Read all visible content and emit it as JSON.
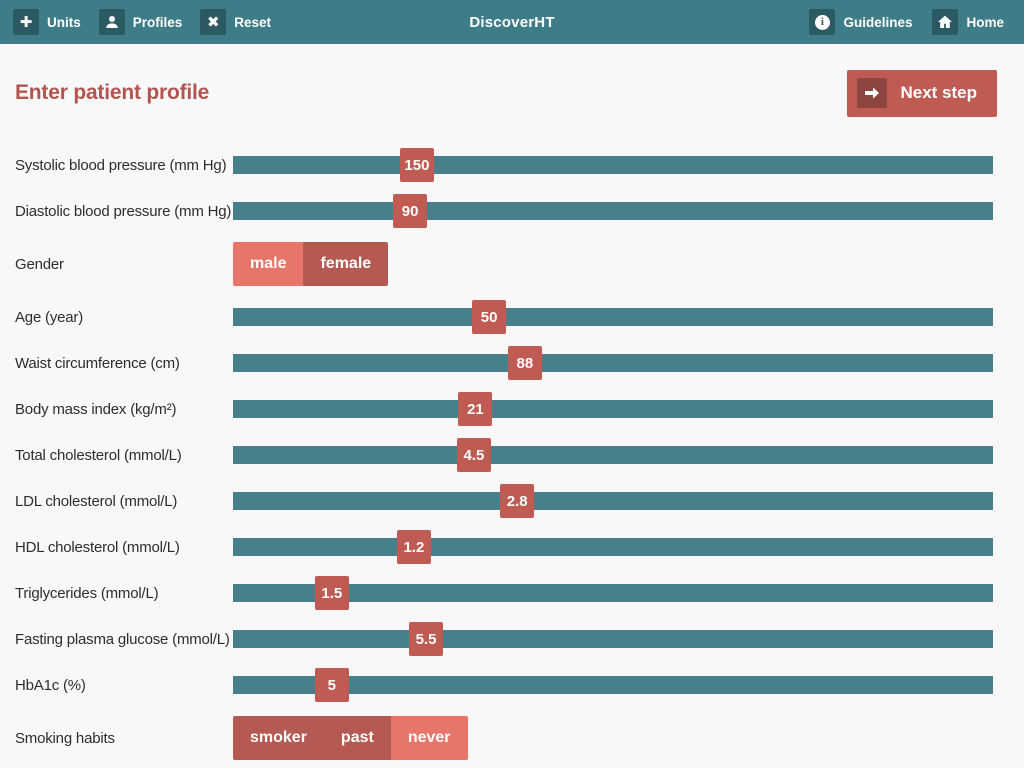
{
  "colors": {
    "teal_bar": "#3e7d87",
    "teal_dark": "#2b5a62",
    "teal_track": "#47808a",
    "red": "#c05b54",
    "red_dark": "#8e4540",
    "red_heading": "#b25551",
    "salmon": "#e8756a",
    "toggle_dark": "#b55a52",
    "bg": "#f8f8f8",
    "label": "#2d2d2d"
  },
  "navbar": {
    "title": "DiscoverHT",
    "left_items": [
      {
        "label": "Units",
        "icon": "plus-icon"
      },
      {
        "label": "Profiles",
        "icon": "person-icon"
      },
      {
        "label": "Reset",
        "icon": "x-icon"
      }
    ],
    "right_items": [
      {
        "label": "Guidelines",
        "icon": "info-icon"
      },
      {
        "label": "Home",
        "icon": "home-icon"
      }
    ]
  },
  "header": {
    "title": "Enter patient profile",
    "next_button": {
      "label": "Next step",
      "icon": "arrow-right-icon"
    }
  },
  "form": {
    "rows": [
      {
        "type": "slider",
        "label": "Systolic blood pressure (mm Hg)",
        "value": "150",
        "percent": 24.2
      },
      {
        "type": "slider",
        "label": "Diastolic blood pressure (mm Hg)",
        "value": "90",
        "percent": 23.3
      },
      {
        "type": "toggle",
        "label": "Gender",
        "options": [
          {
            "label": "male",
            "selected": true
          },
          {
            "label": "female",
            "selected": false
          }
        ]
      },
      {
        "type": "slider",
        "label": "Age (year)",
        "value": "50",
        "percent": 33.7
      },
      {
        "type": "slider",
        "label": "Waist circumference (cm)",
        "value": "88",
        "percent": 38.4
      },
      {
        "type": "slider",
        "label": "Body mass index (kg/m²)",
        "value": "21",
        "percent": 31.9
      },
      {
        "type": "slider",
        "label": "Total cholesterol (mmol/L)",
        "value": "4.5",
        "percent": 31.7
      },
      {
        "type": "slider",
        "label": "LDL cholesterol (mmol/L)",
        "value": "2.8",
        "percent": 37.4
      },
      {
        "type": "slider",
        "label": "HDL cholesterol (mmol/L)",
        "value": "1.2",
        "percent": 23.8
      },
      {
        "type": "slider",
        "label": "Triglycerides (mmol/L)",
        "value": "1.5",
        "percent": 13.0
      },
      {
        "type": "slider",
        "label": "Fasting plasma glucose (mmol/L)",
        "value": "5.5",
        "percent": 25.4
      },
      {
        "type": "slider",
        "label": "HbA1c (%)",
        "value": "5",
        "percent": 13.0
      },
      {
        "type": "toggle",
        "label": "Smoking habits",
        "options": [
          {
            "label": "smoker",
            "selected": false
          },
          {
            "label": "past",
            "selected": false
          },
          {
            "label": "never",
            "selected": true
          }
        ]
      }
    ]
  }
}
